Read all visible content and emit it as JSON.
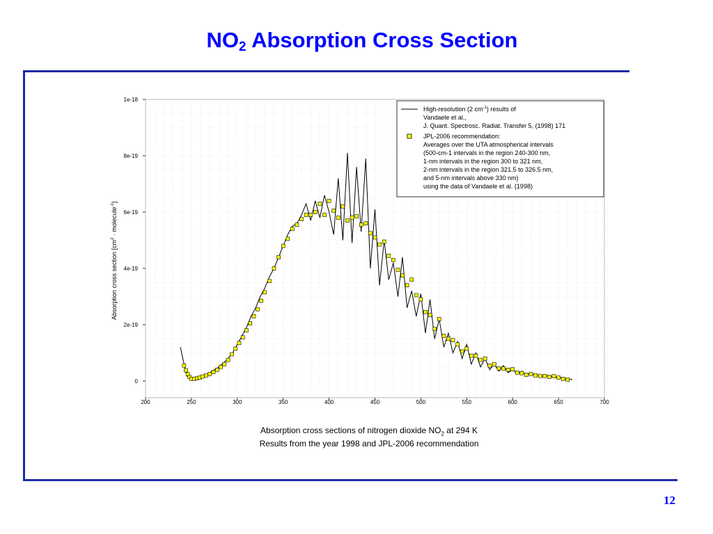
{
  "slide": {
    "title_main": "NO",
    "title_sub": "2",
    "title_rest": " Absorption Cross Section",
    "page_number": "12",
    "accent_color": "#0000ff",
    "rule_color": "#1b2aa6"
  },
  "caption": {
    "line1_before": "Absorption cross sections of nitrogen dioxide NO",
    "line1_sub": "2",
    "line1_after": " at 294 K",
    "line2": "Results from the year 1998 and JPL-2006 recommendation"
  },
  "chart_data": {
    "type": "line",
    "xlim": [
      200,
      700
    ],
    "ylim": [
      0,
      1e-18
    ],
    "x_ticks": [
      200,
      250,
      300,
      350,
      400,
      450,
      500,
      550,
      600,
      650,
      700
    ],
    "y_ticks": [
      0,
      2e-19,
      4e-19,
      6e-19,
      8e-19,
      1e-18
    ],
    "y_tick_labels": [
      "0",
      "2e-19",
      "4e-19",
      "6e-19",
      "8e-19",
      "1e-18"
    ],
    "ylabel_main": "Absorption cross section [cm",
    "ylabel_sup1": "2",
    "ylabel_mid": " · molecule",
    "ylabel_sup2": "-1",
    "ylabel_end": "]",
    "grid": true,
    "legend_position": "top-right",
    "series": [
      {
        "name": "High-resolution (2 cm-1) results of Vandaele et al., J. Quant. Spectrosc. Radiat. Transfer 5, (1998) 171",
        "marker": "line",
        "color": "#000000",
        "x": [
          238,
          240,
          242,
          244,
          246,
          248,
          250,
          252,
          255,
          260,
          265,
          270,
          275,
          280,
          285,
          290,
          295,
          300,
          305,
          310,
          315,
          320,
          325,
          330,
          335,
          340,
          345,
          350,
          355,
          360,
          365,
          370,
          375,
          380,
          385,
          390,
          395,
          400,
          405,
          410,
          415,
          420,
          425,
          430,
          435,
          440,
          445,
          450,
          455,
          460,
          465,
          470,
          475,
          480,
          485,
          490,
          495,
          500,
          505,
          510,
          515,
          520,
          525,
          530,
          535,
          540,
          545,
          550,
          555,
          560,
          565,
          570,
          575,
          580,
          585,
          590,
          595,
          600,
          605,
          610,
          615,
          620,
          625,
          630,
          635,
          640,
          645,
          650,
          655,
          660,
          665
        ],
        "y": [
          1.2e-19,
          9e-20,
          6e-20,
          3e-20,
          1.5e-20,
          8e-21,
          6e-21,
          8e-21,
          1e-20,
          1.5e-20,
          2e-20,
          3e-20,
          4e-20,
          5e-20,
          6.5e-20,
          8e-20,
          1e-19,
          1.3e-19,
          1.6e-19,
          1.9e-19,
          2.3e-19,
          2.6e-19,
          3e-19,
          3.3e-19,
          3.7e-19,
          4e-19,
          4.4e-19,
          4.8e-19,
          5.2e-19,
          5.5e-19,
          5.6e-19,
          5.9e-19,
          6.3e-19,
          5.7e-19,
          6.4e-19,
          5.8e-19,
          6.6e-19,
          6e-19,
          5.2e-19,
          7.2e-19,
          5e-19,
          8.1e-19,
          4.9e-19,
          7.6e-19,
          5.3e-19,
          7.9e-19,
          4e-19,
          6.1e-19,
          3.4e-19,
          5e-19,
          3.6e-19,
          4.2e-19,
          3e-19,
          4.4e-19,
          2.6e-19,
          3.2e-19,
          2.3e-19,
          3.1e-19,
          1.7e-19,
          2.9e-19,
          1.5e-19,
          2.2e-19,
          1.2e-19,
          1.7e-19,
          1e-19,
          1.4e-19,
          8e-20,
          1.3e-19,
          6e-20,
          1e-19,
          5e-20,
          8e-20,
          4e-20,
          6e-20,
          3.5e-20,
          5.5e-20,
          3e-20,
          4e-20,
          2.5e-20,
          3.5e-20,
          2e-20,
          3e-20,
          1.8e-20,
          2e-20,
          1.5e-20,
          2e-20,
          1.2e-20,
          1.5e-20,
          8e-21,
          7e-21,
          6e-21
        ]
      },
      {
        "name": "JPL-2006 recommendation: Averages over the UTA atmospherical intervals (500-cm-1 intervals in the region 240-300 nm, 1-nm intervals in the region 300 to 321 nm, 2-nm intervals in the region 321.5 to 326.5 nm, and 5-nm intervals above 330 nm) using the data of Vandaele et al. (1998)",
        "marker": "square",
        "color": "#ffff00",
        "x": [
          242,
          244,
          246,
          248,
          250,
          253,
          256,
          259,
          262,
          266,
          270,
          274,
          278,
          282,
          286,
          290,
          294,
          298,
          302,
          306,
          310,
          314,
          318,
          322,
          326,
          330,
          335,
          340,
          345,
          350,
          355,
          360,
          365,
          370,
          375,
          380,
          385,
          390,
          395,
          400,
          405,
          410,
          415,
          420,
          425,
          430,
          435,
          440,
          445,
          450,
          455,
          460,
          465,
          470,
          475,
          480,
          485,
          490,
          495,
          500,
          505,
          510,
          515,
          520,
          525,
          530,
          535,
          540,
          545,
          550,
          555,
          560,
          565,
          570,
          575,
          580,
          585,
          590,
          595,
          600,
          605,
          610,
          615,
          620,
          625,
          630,
          635,
          640,
          645,
          650,
          655,
          660
        ],
        "y": [
          5.5e-20,
          3.8e-20,
          2.4e-20,
          1.4e-20,
          8e-21,
          8e-21,
          1e-20,
          1.2e-20,
          1.6e-20,
          2e-20,
          2.5e-20,
          3.2e-20,
          4e-20,
          5e-20,
          6e-20,
          7.5e-20,
          9.5e-20,
          1.15e-19,
          1.35e-19,
          1.55e-19,
          1.8e-19,
          2.05e-19,
          2.3e-19,
          2.55e-19,
          2.85e-19,
          3.15e-19,
          3.55e-19,
          4e-19,
          4.4e-19,
          4.8e-19,
          5.05e-19,
          5.4e-19,
          5.55e-19,
          5.75e-19,
          5.9e-19,
          5.9e-19,
          6e-19,
          6.3e-19,
          5.9e-19,
          6.4e-19,
          6.05e-19,
          5.8e-19,
          6.2e-19,
          5.7e-19,
          5.8e-19,
          5.85e-19,
          5.55e-19,
          5.6e-19,
          5.25e-19,
          5.1e-19,
          4.85e-19,
          4.95e-19,
          4.45e-19,
          4.3e-19,
          3.95e-19,
          3.75e-19,
          3.4e-19,
          3.6e-19,
          3.05e-19,
          2.9e-19,
          2.45e-19,
          2.35e-19,
          1.85e-19,
          2.2e-19,
          1.6e-19,
          1.5e-19,
          1.45e-19,
          1.3e-19,
          1.05e-19,
          1.15e-19,
          9e-20,
          9e-20,
          7.5e-20,
          8e-20,
          5.5e-20,
          6e-20,
          4.5e-20,
          4.5e-20,
          4e-20,
          4.2e-20,
          3e-20,
          2.8e-20,
          2.2e-20,
          2.5e-20,
          2e-20,
          1.8e-20,
          1.8e-20,
          1.5e-20,
          1.7e-20,
          1.2e-20,
          8e-21,
          5e-21
        ]
      }
    ],
    "legend": {
      "line_1": "High-resolution (2 cm",
      "line_1_sup": "-1",
      "line_1_end": ") results of",
      "line_2": "Vandaele et al.,",
      "line_3": "J. Quant. Spectrosc. Radiat. Transfer 5, (1998) 171",
      "marker_line_1": "JPL-2006 recommendation:",
      "marker_line_2": "Averages over the UTA atmospherical intervals",
      "marker_line_3": "(500-cm-1 intervals in the region 240-300 nm,",
      "marker_line_4": "1-nm intervals in the region 300 to 321 nm,",
      "marker_line_5": "2-nm intervals in the region 321.5 to 326.5 nm,",
      "marker_line_6": "and 5-nm intervals above 330 nm)",
      "marker_line_7": "using the data of Vandaele et al. (1998)"
    }
  }
}
